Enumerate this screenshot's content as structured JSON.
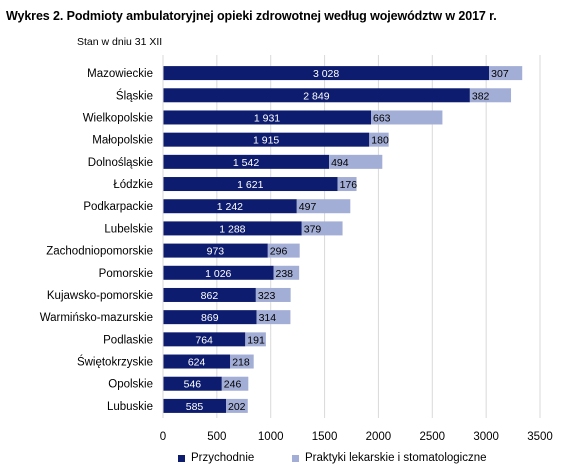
{
  "title": "Wykres 2. Podmioty ambulatoryjnej opieki zdrowotnej według województw w 2017 r.",
  "subtitle": "Stan w dniu 31 XII",
  "colors": {
    "series1": "#0d1c6e",
    "series2": "#a3aed6",
    "grid": "#d9d9d9"
  },
  "chart_data": {
    "type": "bar",
    "orientation": "horizontal",
    "stacked": true,
    "title": "Wykres 2. Podmioty ambulatoryjnej opieki zdrowotnej według województw w 2017 r.",
    "subtitle": "Stan w dniu 31 XII",
    "categories": [
      "Mazowieckie",
      "Śląskie",
      "Wielkopolskie",
      "Małopolskie",
      "Dolnośląskie",
      "Łódzkie",
      "Podkarpackie",
      "Lubelskie",
      "Zachodniopomorskie",
      "Pomorskie",
      "Kujawsko-pomorskie",
      "Warmińsko-mazurskie",
      "Podlaskie",
      "Świętokrzyskie",
      "Opolskie",
      "Lubuskie"
    ],
    "series": [
      {
        "name": "Przychodnie",
        "values": [
          3028,
          2849,
          1931,
          1915,
          1542,
          1621,
          1242,
          1288,
          973,
          1026,
          862,
          869,
          764,
          624,
          546,
          585
        ],
        "labels": [
          "3 028",
          "2 849",
          "1 931",
          "1 915",
          "1 542",
          "1 621",
          "1 242",
          "1 288",
          "973",
          "1 026",
          "862",
          "869",
          "764",
          "624",
          "546",
          "585"
        ]
      },
      {
        "name": "Praktyki lekarskie i stomatologiczne",
        "values": [
          307,
          382,
          663,
          180,
          494,
          176,
          497,
          379,
          296,
          238,
          323,
          314,
          191,
          218,
          246,
          202
        ],
        "labels": [
          "307",
          "382",
          "663",
          "180",
          "494",
          "176",
          "497",
          "379",
          "296",
          "238",
          "323",
          "314",
          "191",
          "218",
          "246",
          "202"
        ]
      }
    ],
    "xlim": [
      0,
      3500
    ],
    "xticks": [
      "0",
      "500",
      "1000",
      "1500",
      "2000",
      "2500",
      "3000",
      "3500"
    ],
    "grid": true,
    "legend": "bottom"
  }
}
